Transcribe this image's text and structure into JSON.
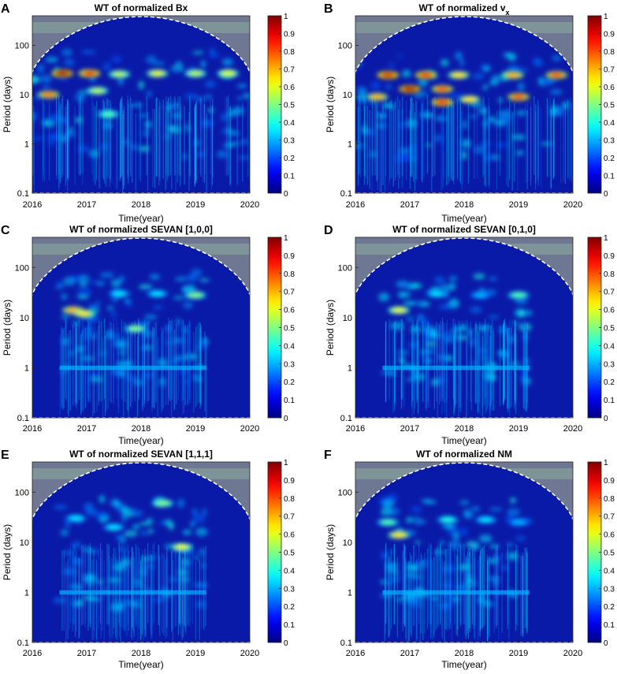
{
  "figure": {
    "panels": [
      {
        "letter": "A",
        "title": "WT of normalized Bx",
        "title_sub": "",
        "xlabel": "Time(year)",
        "ylabel": "Period (days)"
      },
      {
        "letter": "B",
        "title": "WT of normalized v",
        "title_sub": "x",
        "xlabel": "Time(year)",
        "ylabel": "Period (days)"
      },
      {
        "letter": "C",
        "title": "WT of normalized SEVAN [1,0,0]",
        "title_sub": "",
        "xlabel": "Time(year)",
        "ylabel": "Period (days)"
      },
      {
        "letter": "D",
        "title": "WT of normalized SEVAN [0,1,0]",
        "title_sub": "",
        "xlabel": "Time(year)",
        "ylabel": "Period (days)"
      },
      {
        "letter": "E",
        "title": "WT of normalized SEVAN [1,1,1]",
        "title_sub": "",
        "xlabel": "Time(year)",
        "ylabel": "Period (days)"
      },
      {
        "letter": "F",
        "title": "WT of normalized NM",
        "title_sub": "",
        "xlabel": "Time(year)",
        "ylabel": "Period (days)"
      }
    ]
  },
  "chart_data": [
    {
      "type": "heatmap",
      "panel": "A",
      "title": "WT of normalized Bx",
      "xlabel": "Time(year)",
      "ylabel": "Period (days)",
      "xlim": [
        2016,
        2020
      ],
      "ylim": [
        0.1,
        400
      ],
      "yscale": "log",
      "xticks": [
        "2016",
        "2017",
        "2018",
        "2019",
        "2020"
      ],
      "yticks": [
        "0.1",
        "1",
        "10",
        "100"
      ],
      "colorbar": {
        "range": [
          0,
          1
        ],
        "ticks": [
          "0",
          "0.1",
          "0.2",
          "0.3",
          "0.4",
          "0.5",
          "0.6",
          "0.7",
          "0.8",
          "0.9",
          "1"
        ],
        "colormap": "jet"
      },
      "cone_of_influence": true,
      "hotspots": [
        {
          "t": 2016.55,
          "period": 27,
          "power": 0.95
        },
        {
          "t": 2017.05,
          "period": 27,
          "power": 0.85
        },
        {
          "t": 2017.6,
          "period": 26,
          "power": 0.55
        },
        {
          "t": 2018.3,
          "period": 27,
          "power": 0.6
        },
        {
          "t": 2019.0,
          "period": 27,
          "power": 0.55
        },
        {
          "t": 2019.6,
          "period": 27,
          "power": 0.6
        },
        {
          "t": 2016.3,
          "period": 10,
          "power": 0.75
        },
        {
          "t": 2017.2,
          "period": 12,
          "power": 0.55
        },
        {
          "t": 2017.4,
          "period": 4,
          "power": 0.45
        }
      ]
    },
    {
      "type": "heatmap",
      "panel": "B",
      "title": "WT of normalized vx",
      "xlabel": "Time(year)",
      "ylabel": "Period (days)",
      "xlim": [
        2016,
        2020
      ],
      "ylim": [
        0.1,
        400
      ],
      "yscale": "log",
      "xticks": [
        "2016",
        "2017",
        "2018",
        "2019",
        "2020"
      ],
      "yticks": [
        "0.1",
        "1",
        "10",
        "100"
      ],
      "colorbar": {
        "range": [
          0,
          1
        ],
        "ticks": [
          "0",
          "0.1",
          "0.2",
          "0.3",
          "0.4",
          "0.5",
          "0.6",
          "0.7",
          "0.8",
          "0.9",
          "1"
        ],
        "colormap": "jet"
      },
      "cone_of_influence": true,
      "hotspots": [
        {
          "t": 2016.6,
          "period": 25,
          "power": 0.9
        },
        {
          "t": 2017.3,
          "period": 25,
          "power": 0.85
        },
        {
          "t": 2017.9,
          "period": 25,
          "power": 0.65
        },
        {
          "t": 2018.9,
          "period": 25,
          "power": 0.7
        },
        {
          "t": 2019.7,
          "period": 25,
          "power": 0.8
        },
        {
          "t": 2017.0,
          "period": 13,
          "power": 0.95
        },
        {
          "t": 2017.6,
          "period": 13,
          "power": 0.8
        },
        {
          "t": 2016.4,
          "period": 9,
          "power": 0.7
        },
        {
          "t": 2017.6,
          "period": 7,
          "power": 0.85
        },
        {
          "t": 2018.1,
          "period": 8,
          "power": 0.65
        },
        {
          "t": 2019.0,
          "period": 9,
          "power": 0.8
        }
      ]
    },
    {
      "type": "heatmap",
      "panel": "C",
      "title": "WT of normalized SEVAN [1,0,0]",
      "xlabel": "Time(year)",
      "ylabel": "Period (days)",
      "xlim": [
        2016,
        2020
      ],
      "ylim": [
        0.1,
        400
      ],
      "yscale": "log",
      "xticks": [
        "2016",
        "2017",
        "2018",
        "2019",
        "2020"
      ],
      "yticks": [
        "0.1",
        "1",
        "10",
        "100"
      ],
      "colorbar": {
        "range": [
          0,
          1
        ],
        "ticks": [
          "0",
          "0.1",
          "0.2",
          "0.3",
          "0.4",
          "0.5",
          "0.6",
          "0.7",
          "0.8",
          "0.9",
          "1"
        ],
        "colormap": "jet"
      },
      "cone_of_influence": true,
      "data_span": [
        2016.5,
        2019.2
      ],
      "hotspots": [
        {
          "t": 2016.75,
          "period": 14,
          "power": 0.7
        },
        {
          "t": 2016.95,
          "period": 12,
          "power": 0.65
        },
        {
          "t": 2019.0,
          "period": 28,
          "power": 0.5
        },
        {
          "t": 2017.6,
          "period": 30,
          "power": 0.35
        },
        {
          "t": 2018.3,
          "period": 30,
          "power": 0.35
        },
        {
          "t": 2017.9,
          "period": 6,
          "power": 0.5
        }
      ]
    },
    {
      "type": "heatmap",
      "panel": "D",
      "title": "WT of normalized SEVAN [0,1,0]",
      "xlabel": "Time(year)",
      "ylabel": "Period (days)",
      "xlim": [
        2016,
        2020
      ],
      "ylim": [
        0.1,
        400
      ],
      "yscale": "log",
      "xticks": [
        "2016",
        "2017",
        "2018",
        "2019",
        "2020"
      ],
      "yticks": [
        "0.1",
        "1",
        "10",
        "100"
      ],
      "colorbar": {
        "range": [
          0,
          1
        ],
        "ticks": [
          "0",
          "0.1",
          "0.2",
          "0.3",
          "0.4",
          "0.5",
          "0.6",
          "0.7",
          "0.8",
          "0.9",
          "1"
        ],
        "colormap": "jet"
      },
      "cone_of_influence": true,
      "data_span": [
        2016.5,
        2019.2
      ],
      "hotspots": [
        {
          "t": 2016.8,
          "period": 14,
          "power": 0.6
        },
        {
          "t": 2019.0,
          "period": 28,
          "power": 0.45
        },
        {
          "t": 2017.5,
          "period": 30,
          "power": 0.35
        },
        {
          "t": 2018.3,
          "period": 28,
          "power": 0.3
        }
      ]
    },
    {
      "type": "heatmap",
      "panel": "E",
      "title": "WT of normalized SEVAN [1,1,1]",
      "xlabel": "Time(year)",
      "ylabel": "Period (days)",
      "xlim": [
        2016,
        2020
      ],
      "ylim": [
        0.1,
        400
      ],
      "yscale": "log",
      "xticks": [
        "2016",
        "2017",
        "2018",
        "2019",
        "2020"
      ],
      "yticks": [
        "0.1",
        "1",
        "10",
        "100"
      ],
      "colorbar": {
        "range": [
          0,
          1
        ],
        "ticks": [
          "0",
          "0.1",
          "0.2",
          "0.3",
          "0.4",
          "0.5",
          "0.6",
          "0.7",
          "0.8",
          "0.9",
          "1"
        ],
        "colormap": "jet"
      },
      "cone_of_influence": true,
      "data_span": [
        2016.5,
        2019.2
      ],
      "hotspots": [
        {
          "t": 2018.4,
          "period": 60,
          "power": 0.5
        },
        {
          "t": 2018.75,
          "period": 8,
          "power": 0.6
        },
        {
          "t": 2016.8,
          "period": 30,
          "power": 0.35
        },
        {
          "t": 2017.5,
          "period": 20,
          "power": 0.35
        }
      ]
    },
    {
      "type": "heatmap",
      "panel": "F",
      "title": "WT of normalized NM",
      "xlabel": "Time(year)",
      "ylabel": "Period (days)",
      "xlim": [
        2016,
        2020
      ],
      "ylim": [
        0.1,
        400
      ],
      "yscale": "log",
      "xticks": [
        "2016",
        "2017",
        "2018",
        "2019",
        "2020"
      ],
      "yticks": [
        "0.1",
        "1",
        "10",
        "100"
      ],
      "colorbar": {
        "range": [
          0,
          1
        ],
        "ticks": [
          "0",
          "0.1",
          "0.2",
          "0.3",
          "0.4",
          "0.5",
          "0.6",
          "0.7",
          "0.8",
          "0.9",
          "1"
        ],
        "colormap": "jet"
      },
      "cone_of_influence": true,
      "data_span": [
        2016.5,
        2019.2
      ],
      "hotspots": [
        {
          "t": 2016.8,
          "period": 14,
          "power": 0.65
        },
        {
          "t": 2016.6,
          "period": 25,
          "power": 0.45
        },
        {
          "t": 2017.7,
          "period": 28,
          "power": 0.4
        },
        {
          "t": 2018.4,
          "period": 28,
          "power": 0.35
        },
        {
          "t": 2019.0,
          "period": 25,
          "power": 0.3
        }
      ]
    }
  ]
}
